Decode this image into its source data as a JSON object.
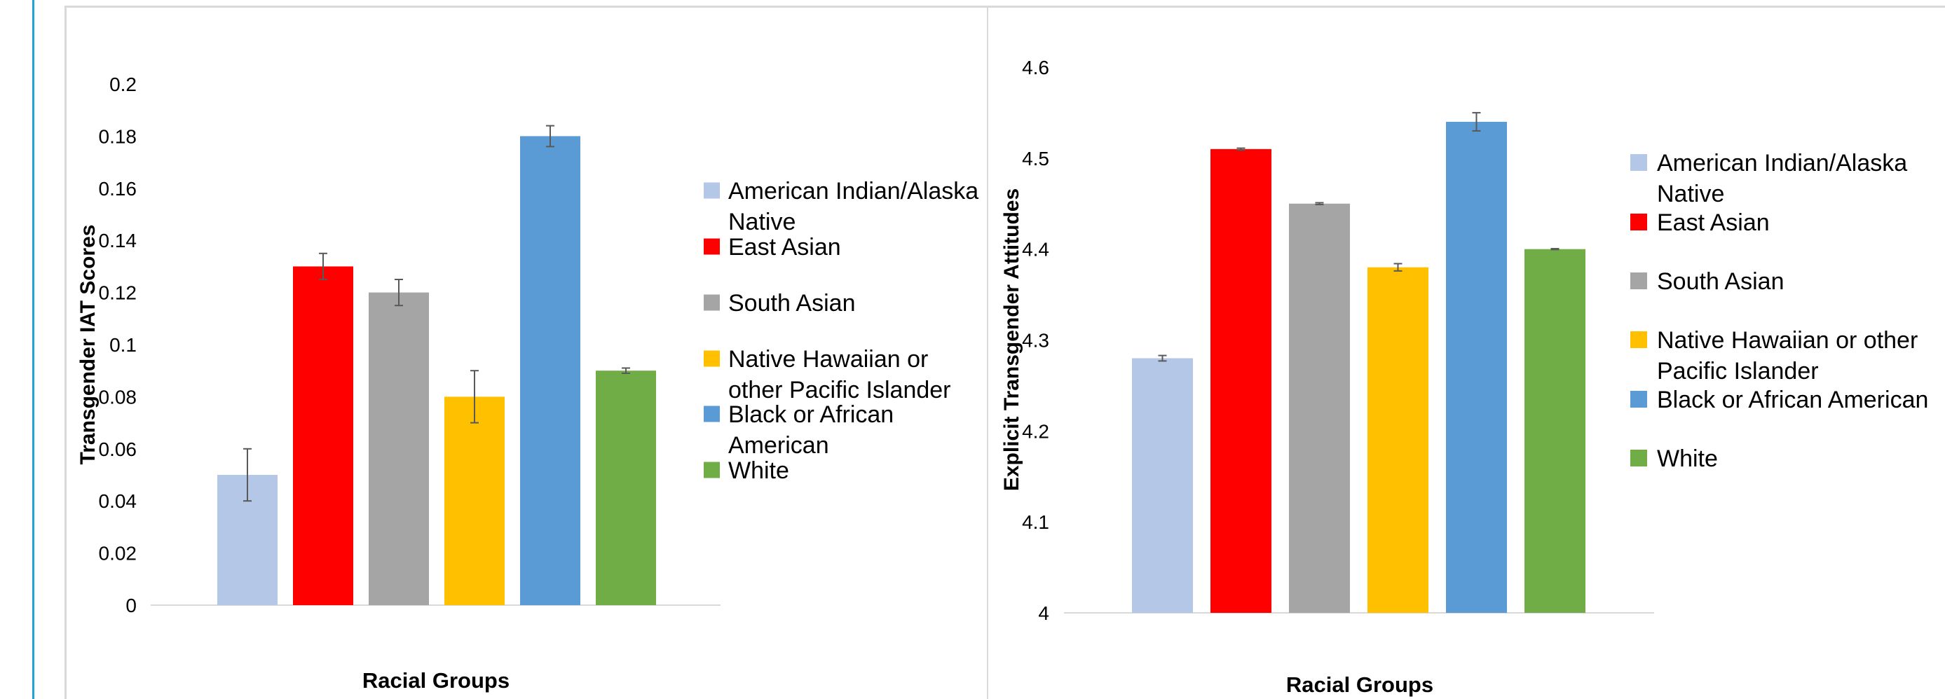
{
  "colors": {
    "American Indian/Alaska Native": "#b4c7e7",
    "East Asian": "#ff0000",
    "South Asian": "#a5a5a5",
    "Native Hawaiian or other Pacific Islander": "#ffc000",
    "Black or African American": "#5b9bd5",
    "White": "#70ad47",
    "axis": "#d9d9d9",
    "error": "#595959"
  },
  "chart_data": [
    {
      "type": "bar",
      "xlabel": "Racial Groups",
      "ylabel": "Transgender IAT Scores",
      "ylim": [
        0,
        0.2
      ],
      "yticks": [
        "0",
        "0.02",
        "0.04",
        "0.06",
        "0.08",
        "0.1",
        "0.12",
        "0.14",
        "0.16",
        "0.18",
        "0.2"
      ],
      "legend_position": "right",
      "series": [
        {
          "name": "American Indian/Alaska Native",
          "value": 0.05,
          "error": 0.01
        },
        {
          "name": "East Asian",
          "value": 0.13,
          "error": 0.005
        },
        {
          "name": "South Asian",
          "value": 0.12,
          "error": 0.005
        },
        {
          "name": "Native Hawaiian or other Pacific Islander",
          "value": 0.08,
          "error": 0.01
        },
        {
          "name": "Black or African American",
          "value": 0.18,
          "error": 0.004
        },
        {
          "name": "White",
          "value": 0.09,
          "error": 0.001
        }
      ]
    },
    {
      "type": "bar",
      "xlabel": "Racial Groups",
      "ylabel": "Explicit Transgender Attitudes",
      "ylim": [
        4,
        4.6
      ],
      "yticks": [
        "4",
        "4.1",
        "4.2",
        "4.3",
        "4.4",
        "4.5",
        "4.6"
      ],
      "legend_position": "right",
      "series": [
        {
          "name": "American Indian/Alaska Native",
          "value": 4.28,
          "error": 0.003
        },
        {
          "name": "East Asian",
          "value": 4.51,
          "error": 0.001
        },
        {
          "name": "South Asian",
          "value": 4.45,
          "error": 0.001
        },
        {
          "name": "Native Hawaiian or other Pacific Islander",
          "value": 4.38,
          "error": 0.004
        },
        {
          "name": "Black or African American",
          "value": 4.54,
          "error": 0.01
        },
        {
          "name": "White",
          "value": 4.4,
          "error": 0.0005
        }
      ]
    }
  ]
}
